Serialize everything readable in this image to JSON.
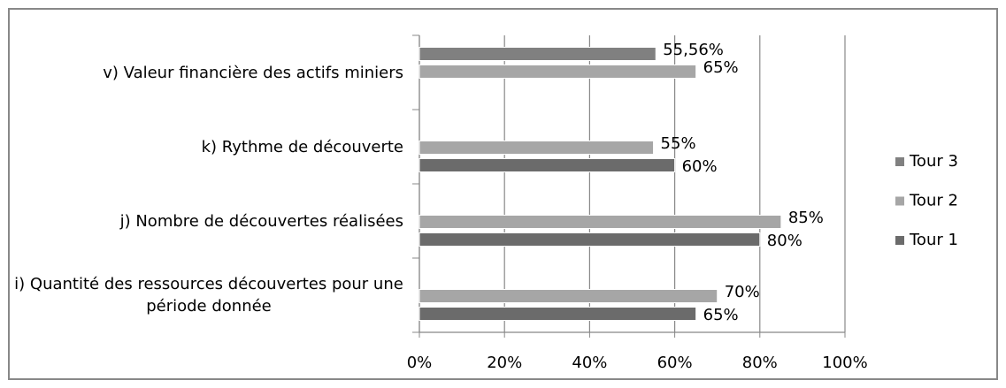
{
  "chart_data": {
    "type": "bar",
    "orientation": "horizontal",
    "categories": [
      "i) Quantité des ressources découvertes pour une période donnée",
      "j) Nombre de découvertes réalisées",
      "k) Rythme de découverte",
      "v) Valeur financière des actifs miniers"
    ],
    "series": [
      {
        "name": "Tour 1",
        "color": "#6b6b6b",
        "values": [
          65,
          80,
          60,
          null
        ],
        "value_labels": [
          "65%",
          "80%",
          "60%",
          null
        ]
      },
      {
        "name": "Tour 2",
        "color": "#a6a6a6",
        "values": [
          70,
          85,
          55,
          65
        ],
        "value_labels": [
          "70%",
          "85%",
          "55%",
          "65%"
        ]
      },
      {
        "name": "Tour 3",
        "color": "#808080",
        "values": [
          null,
          null,
          null,
          55.56
        ],
        "value_labels": [
          null,
          null,
          null,
          "55,56%"
        ]
      }
    ],
    "xlim": [
      0,
      100
    ],
    "xticks": [
      {
        "value": 0,
        "label": "0%"
      },
      {
        "value": 20,
        "label": "20%"
      },
      {
        "value": 40,
        "label": "40%"
      },
      {
        "value": 60,
        "label": "60%"
      },
      {
        "value": 80,
        "label": "80%"
      },
      {
        "value": 100,
        "label": "100%"
      }
    ],
    "grid": true,
    "legend": "right"
  }
}
